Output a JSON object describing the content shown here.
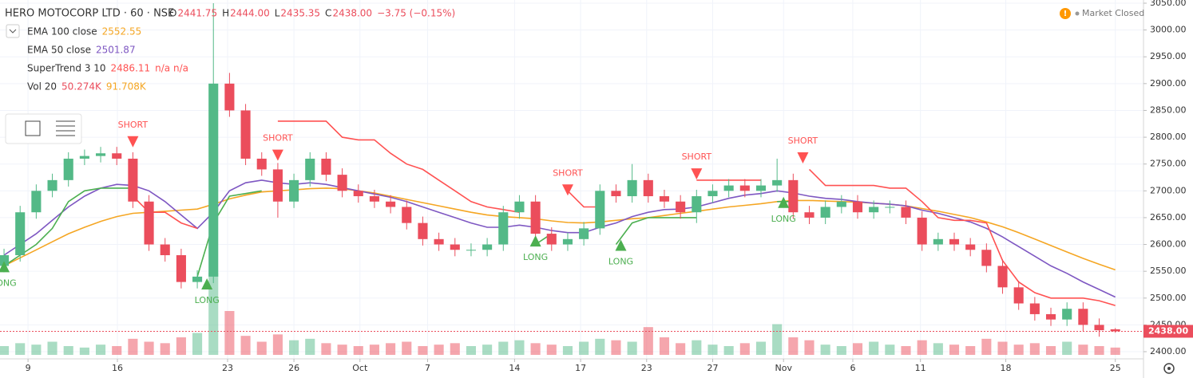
{
  "chart_data": {
    "type": "candlestick",
    "header": {
      "symbol": "HERO MOTOCORP LTD · 60 · NSE",
      "ohlc": [
        {
          "key": "O",
          "text": "2441.75"
        },
        {
          "key": "H",
          "text": "2444.00"
        },
        {
          "key": "L",
          "text": "2435.35"
        },
        {
          "key": "C",
          "text": "2438.00"
        }
      ],
      "change": "−3.75 (−0.15%)"
    },
    "status": "Market Closed",
    "up_color": "#53b987",
    "down_color": "#eb4d5c",
    "open": [
      2560,
      2580,
      2660,
      2700,
      2720,
      2760,
      2765,
      2770,
      2760,
      2680,
      2600,
      2580,
      2530,
      2540,
      2900,
      2850,
      2760,
      2740,
      2680,
      2720,
      2760,
      2730,
      2700,
      2690,
      2680,
      2670,
      2640,
      2610,
      2600,
      2590,
      2590,
      2600,
      2660,
      2680,
      2620,
      2600,
      2610,
      2630,
      2700,
      2690,
      2720,
      2690,
      2680,
      2660,
      2690,
      2700,
      2710,
      2700,
      2710,
      2720,
      2660,
      2650,
      2670,
      2680,
      2660,
      2670,
      2670,
      2650,
      2600,
      2610,
      2600,
      2590,
      2560,
      2520,
      2490,
      2470,
      2460,
      2480,
      2450,
      2441.75
    ],
    "high": [
      2592,
      2672,
      2712,
      2732,
      2772,
      2777,
      2782,
      2782,
      2772,
      2692,
      2612,
      2592,
      2552,
      3050,
      2920,
      2862,
      2772,
      2752,
      2732,
      2772,
      2772,
      2742,
      2712,
      2702,
      2692,
      2682,
      2652,
      2622,
      2612,
      2602,
      2612,
      2672,
      2692,
      2692,
      2632,
      2622,
      2642,
      2712,
      2712,
      2750,
      2732,
      2702,
      2692,
      2702,
      2712,
      2722,
      2722,
      2722,
      2760,
      2732,
      2672,
      2682,
      2692,
      2692,
      2682,
      2682,
      2682,
      2662,
      2622,
      2622,
      2612,
      2602,
      2572,
      2532,
      2502,
      2482,
      2492,
      2492,
      2462,
      2444
    ],
    "low": [
      2548,
      2568,
      2648,
      2688,
      2708,
      2748,
      2753,
      2748,
      2668,
      2588,
      2568,
      2518,
      2518,
      2528,
      2838,
      2748,
      2728,
      2650,
      2668,
      2708,
      2718,
      2688,
      2678,
      2668,
      2658,
      2628,
      2598,
      2588,
      2578,
      2578,
      2578,
      2588,
      2648,
      2608,
      2588,
      2588,
      2598,
      2618,
      2678,
      2678,
      2678,
      2668,
      2648,
      2640,
      2678,
      2688,
      2688,
      2688,
      2698,
      2648,
      2638,
      2638,
      2658,
      2648,
      2648,
      2658,
      2638,
      2588,
      2588,
      2588,
      2578,
      2548,
      2508,
      2478,
      2458,
      2448,
      2448,
      2438,
      2428,
      2435.35
    ],
    "close": [
      2580,
      2660,
      2700,
      2720,
      2760,
      2765,
      2770,
      2760,
      2680,
      2600,
      2580,
      2530,
      2540,
      2900,
      2850,
      2760,
      2740,
      2680,
      2720,
      2760,
      2730,
      2700,
      2690,
      2680,
      2670,
      2640,
      2610,
      2600,
      2590,
      2590,
      2600,
      2660,
      2680,
      2620,
      2600,
      2610,
      2630,
      2700,
      2690,
      2720,
      2690,
      2680,
      2660,
      2690,
      2700,
      2710,
      2700,
      2710,
      2720,
      2660,
      2650,
      2670,
      2680,
      2660,
      2670,
      2670,
      2650,
      2600,
      2610,
      2600,
      2590,
      2560,
      2520,
      2490,
      2470,
      2460,
      2480,
      2450,
      2440,
      2438
    ],
    "xlim": [
      -0.25,
      70.75
    ],
    "xticks": [
      {
        "value": 1.49,
        "label": "9"
      },
      {
        "value": 7.04,
        "label": "16"
      },
      {
        "value": 13.88,
        "label": "23"
      },
      {
        "value": 18.0,
        "label": "26"
      },
      {
        "value": 22.1,
        "label": "Oct"
      },
      {
        "value": 26.3,
        "label": "7"
      },
      {
        "value": 31.7,
        "label": "14"
      },
      {
        "value": 35.8,
        "label": "17"
      },
      {
        "value": 39.9,
        "label": "23"
      },
      {
        "value": 44.0,
        "label": "27"
      },
      {
        "value": 48.4,
        "label": "Nov"
      },
      {
        "value": 52.7,
        "label": "6"
      },
      {
        "value": 56.9,
        "label": "11"
      },
      {
        "value": 62.2,
        "label": "18"
      },
      {
        "value": 69.0,
        "label": "25"
      }
    ],
    "ylim": [
      2400,
      3050
    ],
    "yticks": [
      {
        "value": 2400,
        "label": "2400.00"
      },
      {
        "value": 2450,
        "label": "2450.00"
      },
      {
        "value": 2500,
        "label": "2500.00"
      },
      {
        "value": 2550,
        "label": "2550.00"
      },
      {
        "value": 2600,
        "label": "2600.00"
      },
      {
        "value": 2650,
        "label": "2650.00"
      },
      {
        "value": 2700,
        "label": "2700.00"
      },
      {
        "value": 2750,
        "label": "2750.00"
      },
      {
        "value": 2800,
        "label": "2800.00"
      },
      {
        "value": 2850,
        "label": "2850.00"
      },
      {
        "value": 2900,
        "label": "2900.00"
      },
      {
        "value": 2950,
        "label": "2950.00"
      },
      {
        "value": 3000,
        "label": "3000.00"
      },
      {
        "value": 3050,
        "label": "3050.00"
      }
    ],
    "grid": true,
    "last_price": {
      "value": 2438,
      "label": "2438.00"
    },
    "volume": {
      "name": "Vol 20",
      "readings": [
        "50.274K",
        "91.708K"
      ],
      "y2lim": [
        0,
        600
      ],
      "values": [
        60,
        80,
        70,
        90,
        60,
        50,
        70,
        60,
        110,
        90,
        80,
        120,
        150,
        560,
        300,
        130,
        90,
        140,
        100,
        110,
        80,
        70,
        60,
        70,
        80,
        90,
        60,
        70,
        80,
        60,
        70,
        90,
        100,
        80,
        70,
        60,
        90,
        110,
        100,
        90,
        190,
        120,
        80,
        100,
        70,
        60,
        80,
        90,
        210,
        120,
        100,
        70,
        60,
        80,
        90,
        70,
        60,
        100,
        80,
        70,
        60,
        110,
        90,
        70,
        80,
        60,
        90,
        70,
        60,
        50
      ]
    },
    "indicators": [
      {
        "name": "EMA 100 close",
        "color": "#f5a623",
        "values": [
          2560,
          2575,
          2590,
          2605,
          2620,
          2632,
          2643,
          2652,
          2658,
          2660,
          2662,
          2664,
          2666,
          2675,
          2685,
          2692,
          2698,
          2700,
          2702,
          2704,
          2705,
          2704,
          2700,
          2696,
          2690,
          2684,
          2678,
          2672,
          2666,
          2660,
          2655,
          2652,
          2650,
          2648,
          2644,
          2641,
          2640,
          2642,
          2645,
          2648,
          2650,
          2654,
          2658,
          2662,
          2666,
          2670,
          2673,
          2676,
          2680,
          2682,
          2682,
          2681,
          2680,
          2679,
          2677,
          2675,
          2672,
          2667,
          2662,
          2656,
          2650,
          2642,
          2633,
          2622,
          2610,
          2598,
          2586,
          2574,
          2563,
          2552.55
        ]
      },
      {
        "name": "EMA 50 close",
        "color": "#7e57c2",
        "values": [
          2580,
          2600,
          2620,
          2645,
          2670,
          2690,
          2705,
          2712,
          2710,
          2700,
          2680,
          2655,
          2630,
          2660,
          2700,
          2715,
          2720,
          2715,
          2712,
          2715,
          2712,
          2706,
          2700,
          2694,
          2688,
          2680,
          2670,
          2660,
          2650,
          2640,
          2632,
          2632,
          2636,
          2632,
          2626,
          2622,
          2622,
          2632,
          2640,
          2652,
          2660,
          2665,
          2666,
          2670,
          2678,
          2686,
          2692,
          2695,
          2700,
          2696,
          2690,
          2686,
          2684,
          2680,
          2677,
          2675,
          2672,
          2664,
          2658,
          2650,
          2642,
          2630,
          2614,
          2596,
          2578,
          2560,
          2546,
          2530,
          2516,
          2501.87
        ]
      }
    ],
    "supertrend": {
      "name": "SuperTrend 3 10",
      "readings": "n/a n/a",
      "up_color": "#4caf50",
      "down_color": "#ff5252",
      "up": [
        2560,
        2580,
        2600,
        2630,
        2680,
        2700,
        2705,
        2705,
        2705,
        null,
        null,
        null,
        2540,
        2640,
        2690,
        2695,
        2700,
        null,
        null,
        null,
        null,
        null,
        null,
        null,
        null,
        null,
        null,
        null,
        null,
        null,
        null,
        null,
        null,
        2600,
        2620,
        null,
        null,
        null,
        2600,
        2640,
        2650,
        2650,
        2650,
        2650,
        null,
        null,
        null,
        null,
        2680,
        2680,
        null,
        null,
        null,
        null,
        null,
        null,
        null,
        null,
        null,
        null,
        null,
        null,
        null,
        null,
        null,
        null,
        null,
        null,
        null,
        null
      ],
      "down": [
        null,
        null,
        null,
        null,
        null,
        null,
        null,
        null,
        2690,
        2660,
        2660,
        2640,
        2630,
        null,
        null,
        null,
        null,
        2830,
        2830,
        2830,
        2830,
        2800,
        2795,
        2795,
        2770,
        2750,
        2740,
        2720,
        2700,
        2680,
        2670,
        2665,
        2660,
        null,
        null,
        2700,
        2670,
        2670,
        null,
        null,
        null,
        null,
        null,
        2720,
        2720,
        2720,
        2720,
        2720,
        null,
        null,
        2740,
        2710,
        2710,
        2710,
        2710,
        2705,
        2705,
        2680,
        2650,
        2645,
        2645,
        2640,
        2570,
        2530,
        2510,
        2500,
        2500,
        2500,
        2495,
        2486.11
      ]
    },
    "signals": [
      {
        "label": "LONG",
        "x": 0,
        "y": 2560
      },
      {
        "label": "SHORT",
        "x": 8,
        "y": 2790
      },
      {
        "label": "LONG",
        "x": 12.6,
        "y": 2528
      },
      {
        "label": "SHORT",
        "x": 17,
        "y": 2765
      },
      {
        "label": "LONG",
        "x": 33,
        "y": 2608
      },
      {
        "label": "SHORT",
        "x": 35,
        "y": 2700
      },
      {
        "label": "LONG",
        "x": 38.3,
        "y": 2600
      },
      {
        "label": "SHORT",
        "x": 43,
        "y": 2730
      },
      {
        "label": "LONG",
        "x": 48.4,
        "y": 2680
      },
      {
        "label": "SHORT",
        "x": 49.6,
        "y": 2760
      }
    ]
  }
}
